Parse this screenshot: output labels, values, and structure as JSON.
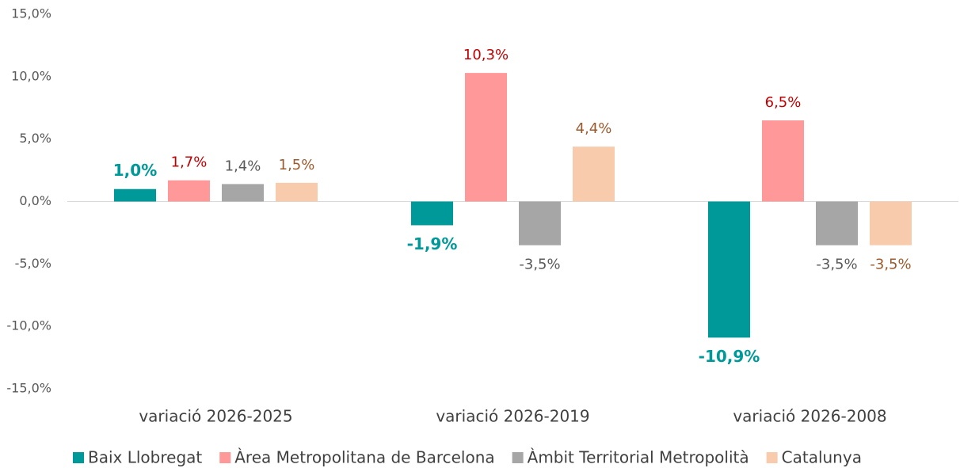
{
  "chart_data": {
    "type": "bar",
    "categories": [
      "variació 2026-2025",
      "variació 2026-2019",
      "variació 2026-2008"
    ],
    "series": [
      {
        "name": "Baix Llobregat",
        "color": "#009999",
        "label_color": "#009999",
        "values": [
          1.0,
          -1.9,
          -10.9
        ],
        "value_labels": [
          "1,0%",
          "-1,9%",
          "-10,9%"
        ]
      },
      {
        "name": "Àrea Metropolitana de Barcelona",
        "color": "#ff9999",
        "label_color": "#c00000",
        "values": [
          1.7,
          10.3,
          6.5
        ],
        "value_labels": [
          "1,7%",
          "10,3%",
          "6,5%"
        ]
      },
      {
        "name": "Àmbit Territorial Metropolità",
        "color": "#a6a6a6",
        "label_color": "#595959",
        "values": [
          1.4,
          -3.5,
          -3.5
        ],
        "value_labels": [
          "1,4%",
          "-3,5%",
          "-3,5%"
        ]
      },
      {
        "name": "Catalunya",
        "color": "#f8cbad",
        "label_color": "#9c5a2c",
        "values": [
          1.5,
          4.4,
          -3.5
        ],
        "value_labels": [
          "1,5%",
          "4,4%",
          "-3,5%"
        ]
      }
    ],
    "ylim": [
      -15,
      15
    ],
    "yticks": [
      {
        "value": -15,
        "label": "-15,0%"
      },
      {
        "value": -10,
        "label": "-10,0%"
      },
      {
        "value": -5,
        "label": "-5,0%"
      },
      {
        "value": 0,
        "label": "0,0%"
      },
      {
        "value": 5,
        "label": "5,0%"
      },
      {
        "value": 10,
        "label": "10,0%"
      },
      {
        "value": 15,
        "label": "15,0%"
      }
    ],
    "grid": false,
    "legend": "bottom"
  }
}
